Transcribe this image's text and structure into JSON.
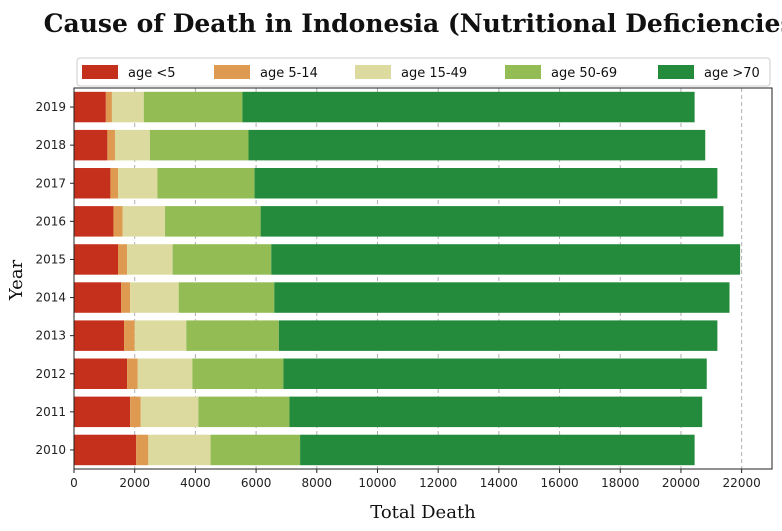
{
  "chart_data": {
    "type": "bar",
    "orientation": "horizontal",
    "stacked": true,
    "title": "Cause of Death in Indonesia (Nutritional Deficiencies)",
    "xlabel": "Total Death",
    "ylabel": "Year",
    "categories": [
      "2010",
      "2011",
      "2012",
      "2013",
      "2014",
      "2015",
      "2016",
      "2017",
      "2018",
      "2019"
    ],
    "xlim": [
      0,
      23000
    ],
    "xticks": [
      0,
      2000,
      4000,
      6000,
      8000,
      10000,
      12000,
      14000,
      16000,
      18000,
      20000,
      22000
    ],
    "grid": "x-dashed",
    "legend_position": "top",
    "series": [
      {
        "name": "age <5",
        "color": "#c5301c",
        "values": [
          2050,
          1850,
          1750,
          1650,
          1550,
          1450,
          1300,
          1200,
          1100,
          1050
        ]
      },
      {
        "name": "age 5-14",
        "color": "#dd9a50",
        "values": [
          400,
          350,
          350,
          350,
          300,
          300,
          300,
          250,
          250,
          200
        ]
      },
      {
        "name": "age 15-49",
        "color": "#dcda9e",
        "values": [
          2050,
          1900,
          1800,
          1700,
          1600,
          1500,
          1400,
          1300,
          1150,
          1050
        ]
      },
      {
        "name": "age 50-69",
        "color": "#93bc55",
        "values": [
          2950,
          3000,
          3000,
          3050,
          3150,
          3250,
          3150,
          3200,
          3250,
          3250
        ]
      },
      {
        "name": "age >70",
        "color": "#238b3b",
        "values": [
          13000,
          13600,
          13950,
          14450,
          15000,
          15450,
          15250,
          15250,
          15050,
          14900
        ]
      }
    ]
  }
}
